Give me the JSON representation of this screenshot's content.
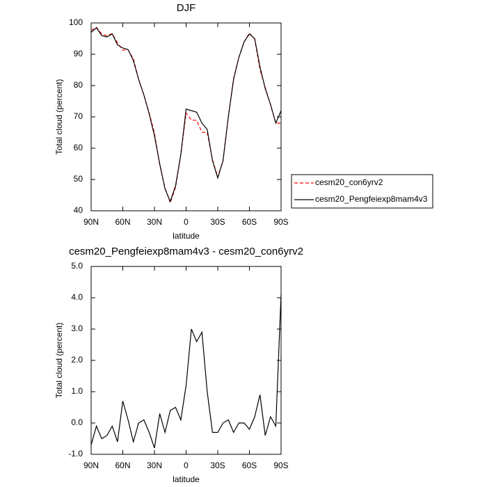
{
  "chart_data": [
    {
      "type": "line",
      "title": "DJF",
      "x_label": "latitude",
      "y_label": "Total cloud (percent)",
      "x": [
        90,
        85,
        80,
        75,
        70,
        65,
        60,
        55,
        50,
        45,
        40,
        35,
        30,
        25,
        20,
        15,
        10,
        5,
        0,
        -5,
        -10,
        -15,
        -20,
        -25,
        -30,
        -35,
        -40,
        -45,
        -50,
        -55,
        -60,
        -65,
        -70,
        -75,
        -80,
        -85,
        -90
      ],
      "xlim": [
        90,
        -90
      ],
      "xticks": [
        {
          "value": 90,
          "label": "90N"
        },
        {
          "value": 60,
          "label": "60N"
        },
        {
          "value": 30,
          "label": "30N"
        },
        0,
        {
          "value": -30,
          "label": "30S"
        },
        {
          "value": -60,
          "label": "60S"
        },
        {
          "value": -90,
          "label": "90S"
        }
      ],
      "ylim": [
        40,
        100
      ],
      "yticks": [
        40,
        50,
        60,
        70,
        80,
        90,
        100
      ],
      "legend": "outside-right",
      "series": [
        {
          "name": "cesm20_con6yrv2",
          "color": "#ff0000",
          "line_style": "dashed",
          "values": [
            97.7,
            98.6,
            96.5,
            95.9,
            96.6,
            93.6,
            91.3,
            91.4,
            88.6,
            82,
            76.9,
            71.3,
            64.8,
            54.7,
            47.3,
            42.6,
            47.5,
            57.9,
            71.3,
            69,
            68.9,
            65.1,
            65,
            56.3,
            50.8,
            56,
            69.9,
            82.3,
            89,
            94,
            96.7,
            94.8,
            85.1,
            79.4,
            73.8,
            68.1,
            67.9
          ]
        },
        {
          "name": "cesm20_Pengfeiexp8mam4v3",
          "color": "#000000",
          "line_style": "solid",
          "values": [
            97,
            98.5,
            96,
            95.5,
            96.5,
            93,
            92,
            91.5,
            88,
            82,
            77,
            71,
            64,
            55,
            47,
            43,
            48,
            58,
            72.5,
            72,
            71.5,
            68,
            66,
            56,
            50.5,
            56,
            70,
            82,
            89,
            94,
            96.5,
            95,
            86,
            79,
            74,
            68,
            72
          ]
        }
      ]
    },
    {
      "type": "line",
      "title": "cesm20_Pengfeiexp8mam4v3 - cesm20_con6yrv2",
      "x_label": "latitude",
      "y_label": "Total cloud (percent)",
      "x": [
        90,
        85,
        80,
        75,
        70,
        65,
        60,
        55,
        50,
        45,
        40,
        35,
        30,
        25,
        20,
        15,
        10,
        5,
        0,
        -5,
        -10,
        -15,
        -20,
        -25,
        -30,
        -35,
        -40,
        -45,
        -50,
        -55,
        -60,
        -65,
        -70,
        -75,
        -80,
        -85,
        -90
      ],
      "xlim": [
        90,
        -90
      ],
      "xticks": [
        {
          "value": 90,
          "label": "90N"
        },
        {
          "value": 60,
          "label": "60N"
        },
        {
          "value": 30,
          "label": "30N"
        },
        0,
        {
          "value": -30,
          "label": "30S"
        },
        {
          "value": -60,
          "label": "60S"
        },
        {
          "value": -90,
          "label": "90S"
        }
      ],
      "ylim": [
        -1,
        5
      ],
      "yticks": [
        {
          "value": -1,
          "label": "-1.0"
        },
        {
          "value": 0,
          "label": "0.0"
        },
        {
          "value": 1,
          "label": "1.0"
        },
        {
          "value": 2,
          "label": "2.0"
        },
        {
          "value": 3,
          "label": "3.0"
        },
        {
          "value": 4,
          "label": "4.0"
        },
        {
          "value": 5,
          "label": "5.0"
        }
      ],
      "series": [
        {
          "color": "#000000",
          "line_style": "solid",
          "values": [
            -0.7,
            -0.1,
            -0.5,
            -0.4,
            -0.1,
            -0.6,
            0.7,
            0.1,
            -0.6,
            0,
            0.1,
            -0.3,
            -0.8,
            0.3,
            -0.3,
            0.4,
            0.5,
            0.1,
            1.2,
            3,
            2.6,
            2.9,
            1,
            -0.3,
            -0.3,
            0,
            0.1,
            -0.3,
            0,
            0,
            -0.2,
            0.2,
            0.9,
            -0.4,
            0.2,
            -0.1,
            4.1
          ]
        }
      ]
    }
  ]
}
